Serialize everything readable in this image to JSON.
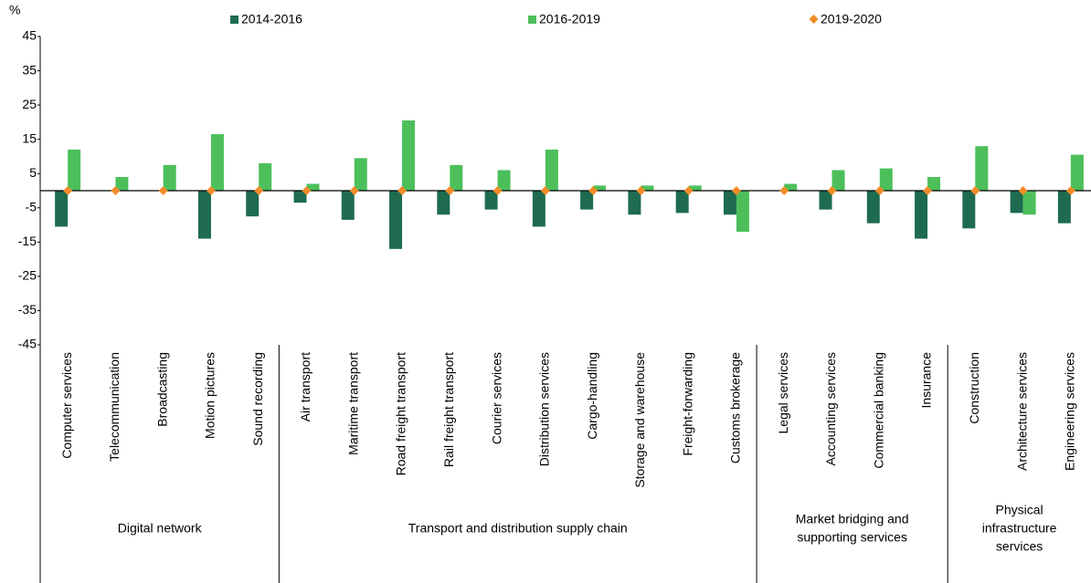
{
  "chart_data": {
    "type": "bar",
    "y_unit": "%",
    "categories": [
      "Computer services",
      "Telecommunication",
      "Broadcasting",
      "Motion pictures",
      "Sound recording",
      "Air transport",
      "Maritime transport",
      "Road freight transport",
      "Rail freight transport",
      "Courier services",
      "Distribution services",
      "Cargo-handling",
      "Storage and warehouse",
      "Freight-forwarding",
      "Customs brokerage",
      "Legal services",
      "Accounting services",
      "Commercial banking",
      "Insurance",
      "Construction",
      "Architecture services",
      "Engineering services"
    ],
    "groups": [
      {
        "label_lines": [
          "Digital network"
        ],
        "size": 5
      },
      {
        "label_lines": [
          "Transport and distribution supply chain"
        ],
        "size": 10
      },
      {
        "label_lines": [
          "Market bridging and",
          "supporting services"
        ],
        "size": 4
      },
      {
        "label_lines": [
          "Physical",
          "infrastructure",
          "services"
        ],
        "size": 3
      }
    ],
    "series": [
      {
        "name": "2014-2016",
        "color": "#1e6b50",
        "mark": "bar",
        "values": [
          -10.5,
          null,
          null,
          -14,
          -7.5,
          -3.5,
          -8.5,
          -17,
          -7,
          -5.5,
          -10.5,
          -5.5,
          -7,
          -6.5,
          -7,
          null,
          -5.5,
          -9.5,
          -14,
          -11,
          -6.5,
          -9.5
        ]
      },
      {
        "name": "2016-2019",
        "color": "#4cbf5b",
        "mark": "bar",
        "values": [
          12,
          4,
          7.5,
          16.5,
          8,
          2,
          9.5,
          20.5,
          7.5,
          6,
          12,
          1.5,
          1.5,
          1.5,
          -12,
          2,
          6,
          6.5,
          4,
          13,
          -7,
          10.5
        ]
      },
      {
        "name": "2019-2020",
        "color": "#f28c28",
        "mark": "diamond",
        "values": [
          0,
          0,
          0,
          0,
          0,
          0,
          0,
          0,
          0,
          0,
          0,
          0,
          0,
          0,
          0,
          0,
          0,
          0,
          0,
          0,
          0,
          0
        ]
      }
    ],
    "ylim": [
      -45,
      45
    ],
    "yticks": [
      45,
      35,
      25,
      15,
      5,
      -5,
      -15,
      -25,
      -35,
      -45
    ]
  }
}
